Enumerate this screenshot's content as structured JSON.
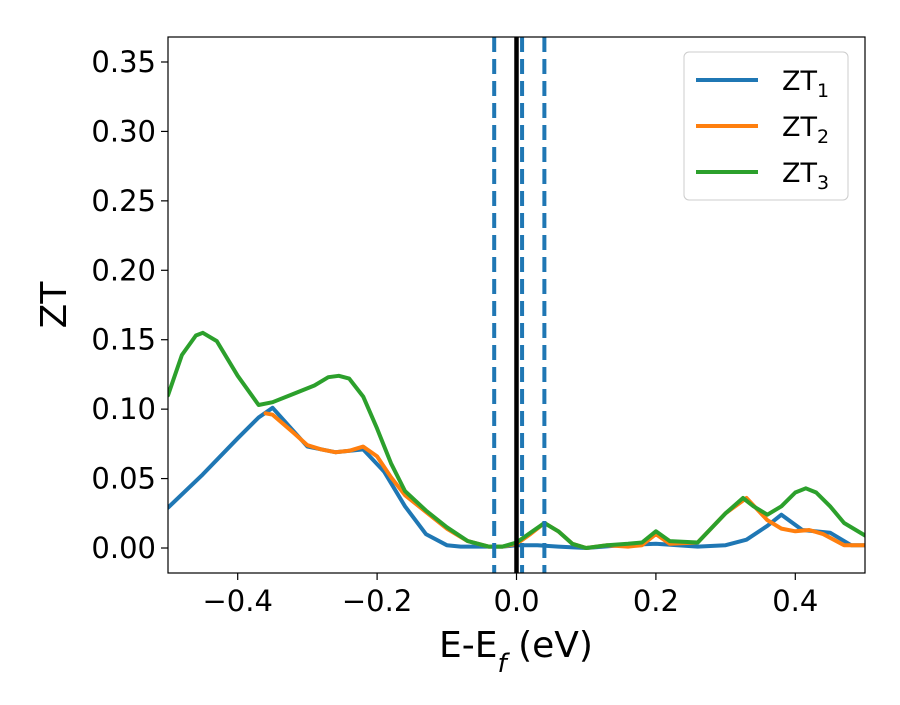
{
  "chart_data": {
    "type": "line",
    "title": "",
    "xlabel": "E-E",
    "xlabel_sub": "f",
    "xlabel_unit": " (eV)",
    "ylabel": "ZT",
    "xlim": [
      -0.5,
      0.5
    ],
    "ylim": [
      -0.018,
      0.368
    ],
    "xticks": [
      -0.4,
      -0.2,
      0.0,
      0.2,
      0.4
    ],
    "xtick_labels": [
      "−0.4",
      "−0.2",
      "0.0",
      "0.2",
      "0.4"
    ],
    "yticks": [
      0.0,
      0.05,
      0.1,
      0.15,
      0.2,
      0.25,
      0.3,
      0.35
    ],
    "ytick_labels": [
      "0.00",
      "0.05",
      "0.10",
      "0.15",
      "0.20",
      "0.25",
      "0.30",
      "0.35"
    ],
    "grid": false,
    "legend_position": "top-right",
    "vlines": [
      {
        "x": 0.0,
        "style": "solid",
        "color": "#000000"
      },
      {
        "x": -0.032,
        "style": "dashed",
        "color": "#1f77b4"
      },
      {
        "x": 0.008,
        "style": "dashed",
        "color": "#1f77b4"
      },
      {
        "x": 0.04,
        "style": "dashed",
        "color": "#1f77b4"
      }
    ],
    "series": [
      {
        "name": "ZT",
        "sub": "1",
        "color": "#1f77b4",
        "x": [
          -0.5,
          -0.45,
          -0.4,
          -0.37,
          -0.35,
          -0.3,
          -0.26,
          -0.22,
          -0.19,
          -0.16,
          -0.13,
          -0.1,
          -0.08,
          -0.05,
          -0.02,
          0.0,
          0.03,
          0.06,
          0.1,
          0.15,
          0.2,
          0.26,
          0.3,
          0.33,
          0.36,
          0.38,
          0.41,
          0.45,
          0.48,
          0.5
        ],
        "y": [
          0.029,
          0.053,
          0.079,
          0.094,
          0.101,
          0.073,
          0.069,
          0.071,
          0.055,
          0.03,
          0.01,
          0.002,
          0.001,
          0.001,
          0.001,
          0.002,
          0.002,
          0.001,
          0.0,
          0.002,
          0.003,
          0.001,
          0.002,
          0.006,
          0.016,
          0.024,
          0.013,
          0.011,
          0.002,
          0.002
        ]
      },
      {
        "name": "ZT",
        "sub": "2",
        "color": "#ff7f0e",
        "x": [
          -0.36,
          -0.35,
          -0.32,
          -0.3,
          -0.28,
          -0.26,
          -0.24,
          -0.22,
          -0.2,
          -0.18,
          -0.16,
          -0.13,
          -0.1,
          -0.07,
          -0.04,
          -0.02,
          0.0,
          0.02,
          0.04,
          0.06,
          0.08,
          0.1,
          0.13,
          0.16,
          0.18,
          0.2,
          0.22,
          0.26,
          0.3,
          0.33,
          0.36,
          0.38,
          0.4,
          0.42,
          0.44,
          0.47,
          0.5
        ],
        "y": [
          0.097,
          0.096,
          0.083,
          0.074,
          0.071,
          0.069,
          0.07,
          0.073,
          0.066,
          0.051,
          0.038,
          0.026,
          0.014,
          0.005,
          0.001,
          0.001,
          0.003,
          0.01,
          0.018,
          0.012,
          0.003,
          0.0,
          0.002,
          0.001,
          0.002,
          0.01,
          0.003,
          0.004,
          0.025,
          0.036,
          0.02,
          0.014,
          0.012,
          0.013,
          0.01,
          0.002,
          0.002
        ]
      },
      {
        "name": "ZT",
        "sub": "3",
        "color": "#2ca02c",
        "x": [
          -0.5,
          -0.48,
          -0.46,
          -0.45,
          -0.43,
          -0.4,
          -0.37,
          -0.35,
          -0.32,
          -0.29,
          -0.27,
          -0.255,
          -0.24,
          -0.22,
          -0.2,
          -0.18,
          -0.16,
          -0.13,
          -0.1,
          -0.07,
          -0.04,
          -0.02,
          0.0,
          0.02,
          0.04,
          0.06,
          0.08,
          0.1,
          0.13,
          0.16,
          0.18,
          0.2,
          0.22,
          0.26,
          0.3,
          0.325,
          0.34,
          0.36,
          0.38,
          0.4,
          0.415,
          0.43,
          0.45,
          0.47,
          0.5
        ],
        "y": [
          0.11,
          0.139,
          0.153,
          0.155,
          0.149,
          0.124,
          0.103,
          0.105,
          0.111,
          0.117,
          0.123,
          0.124,
          0.122,
          0.109,
          0.086,
          0.061,
          0.041,
          0.027,
          0.015,
          0.005,
          0.001,
          0.001,
          0.004,
          0.011,
          0.018,
          0.012,
          0.003,
          0.0,
          0.002,
          0.003,
          0.004,
          0.012,
          0.005,
          0.004,
          0.025,
          0.036,
          0.03,
          0.024,
          0.03,
          0.04,
          0.043,
          0.04,
          0.03,
          0.018,
          0.009
        ]
      }
    ]
  }
}
